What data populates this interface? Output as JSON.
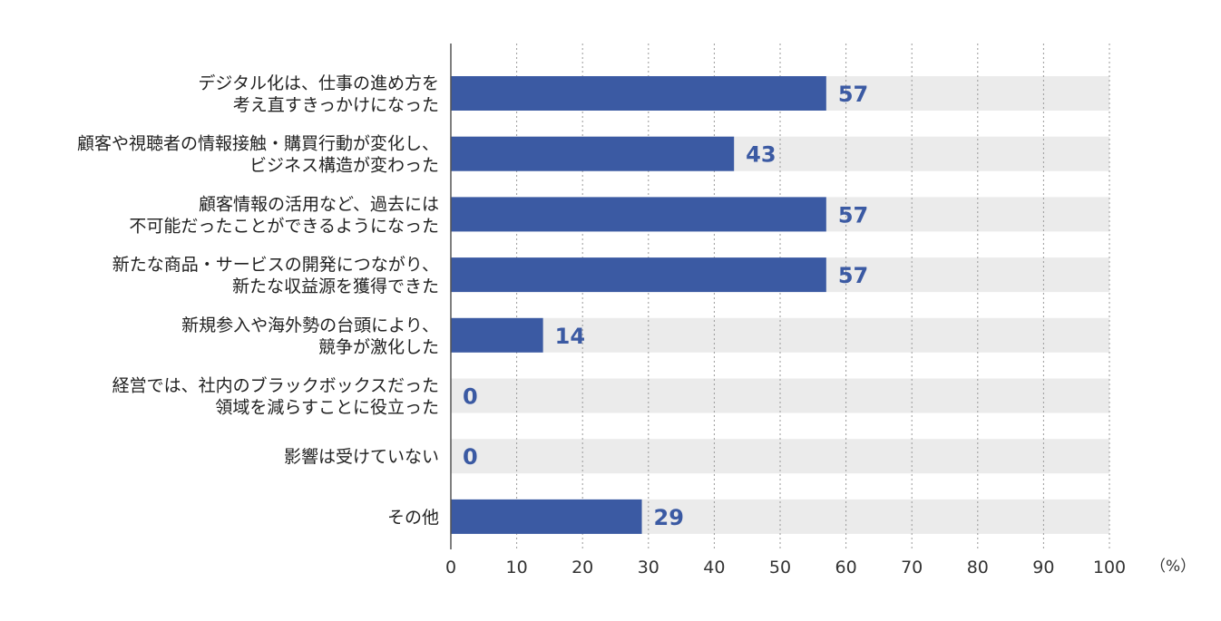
{
  "chart_data": {
    "type": "bar",
    "orientation": "horizontal",
    "categories": [
      [
        "デジタル化は、仕事の進め方を",
        "考え直すきっかけになった"
      ],
      [
        "顧客や視聴者の情報接触・購買行動が変化し、",
        "ビジネス構造が変わった"
      ],
      [
        "顧客情報の活用など、過去には",
        "不可能だったことができるようになった"
      ],
      [
        "新たな商品・サービスの開発につながり、",
        "新たな収益源を獲得できた"
      ],
      [
        "新規参入や海外勢の台頭により、",
        "競争が激化した"
      ],
      [
        "経営では、社内のブラックボックスだった",
        "領域を減らすことに役立った"
      ],
      [
        "影響は受けていない"
      ],
      [
        "その他"
      ]
    ],
    "values": [
      57,
      43,
      57,
      57,
      14,
      0,
      0,
      29
    ],
    "value_labels": [
      "57",
      "43",
      "57",
      "57",
      "14",
      "0",
      "0",
      "29"
    ],
    "xlim": [
      0,
      100
    ],
    "x_ticks": [
      "0",
      "10",
      "20",
      "30",
      "40",
      "50",
      "60",
      "70",
      "80",
      "90",
      "100"
    ],
    "unit": "（%）",
    "grid": true,
    "colors": {
      "bar": "#3b5aa3",
      "track": "#ebebeb",
      "value_text": "#3b5aa3"
    }
  }
}
